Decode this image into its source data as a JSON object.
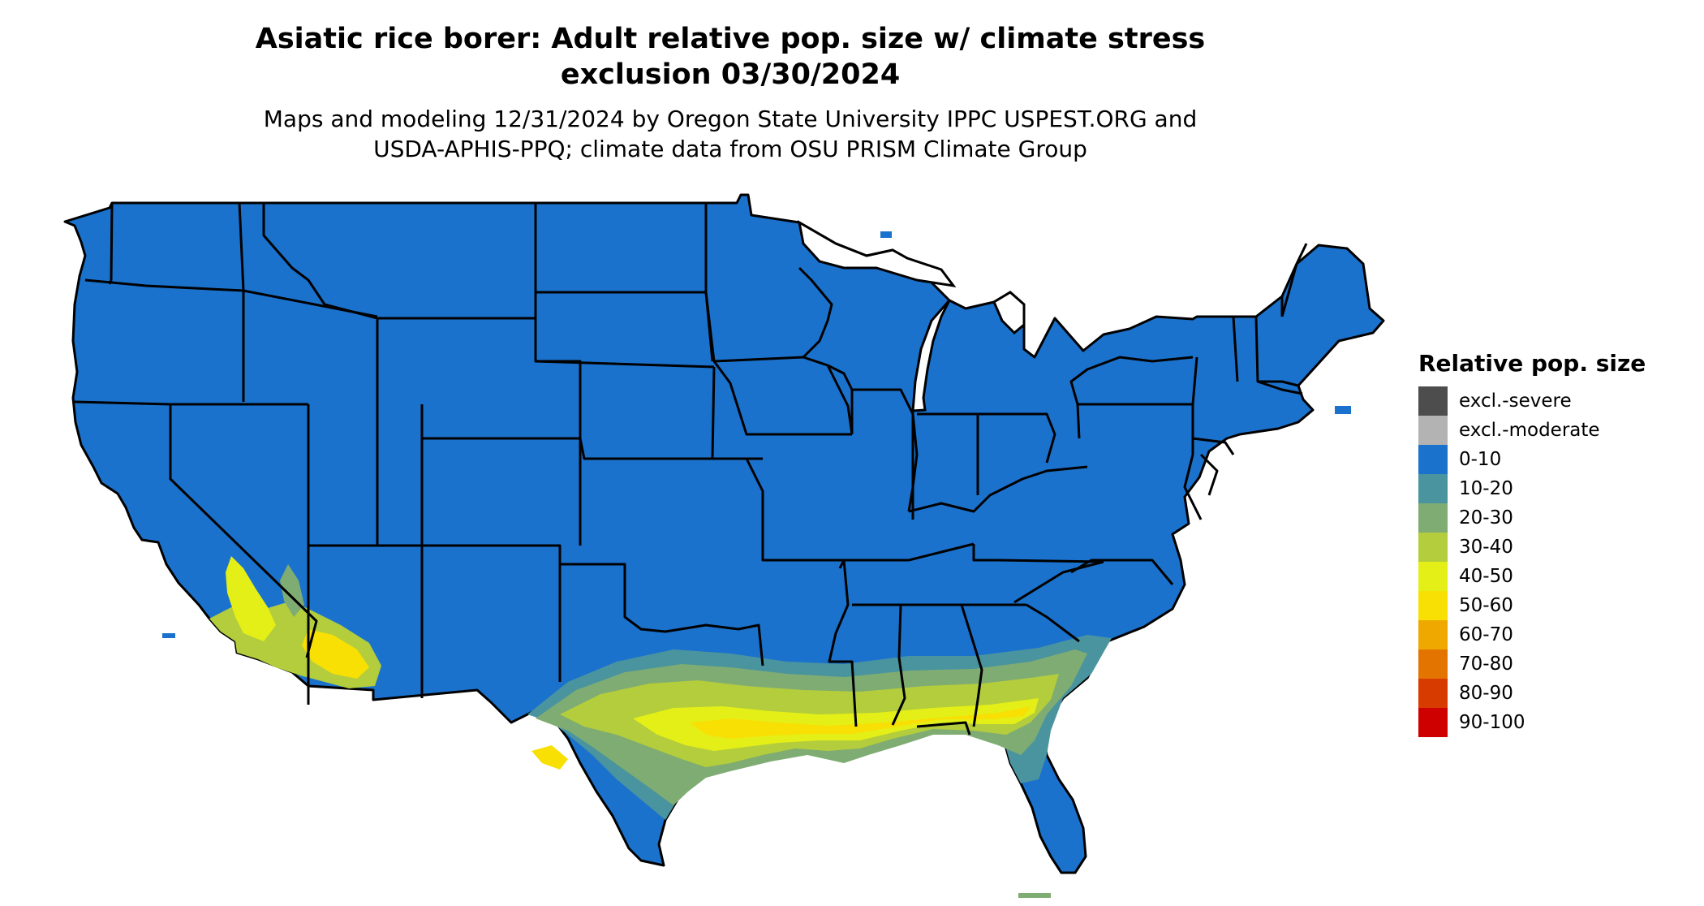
{
  "title": {
    "line1": "Asiatic rice borer: Adult relative pop. size w/ climate stress",
    "line2": "exclusion 03/30/2024"
  },
  "subtitle": {
    "line1": "Maps and modeling 12/31/2024 by Oregon State University IPPC USPEST.ORG and",
    "line2": "USDA-APHIS-PPQ; climate data from OSU PRISM Climate Group"
  },
  "legend": {
    "title": "Relative pop. size",
    "items": [
      {
        "label": "excl.-severe",
        "color": "#4d4d4d"
      },
      {
        "label": "excl.-moderate",
        "color": "#b3b3b3"
      },
      {
        "label": "0-10",
        "color": "#1b72cd"
      },
      {
        "label": "10-20",
        "color": "#4a949f"
      },
      {
        "label": "20-30",
        "color": "#7fac72"
      },
      {
        "label": "30-40",
        "color": "#b3cd3c"
      },
      {
        "label": "40-50",
        "color": "#e4ef17"
      },
      {
        "label": "50-60",
        "color": "#f8e004"
      },
      {
        "label": "60-70",
        "color": "#eea800"
      },
      {
        "label": "70-80",
        "color": "#e47400"
      },
      {
        "label": "80-90",
        "color": "#d83b00"
      },
      {
        "label": "90-100",
        "color": "#cf0000"
      }
    ]
  },
  "map": {
    "base_class": "0-10",
    "base_color": "#1b72cd",
    "border_color": "#000000"
  }
}
